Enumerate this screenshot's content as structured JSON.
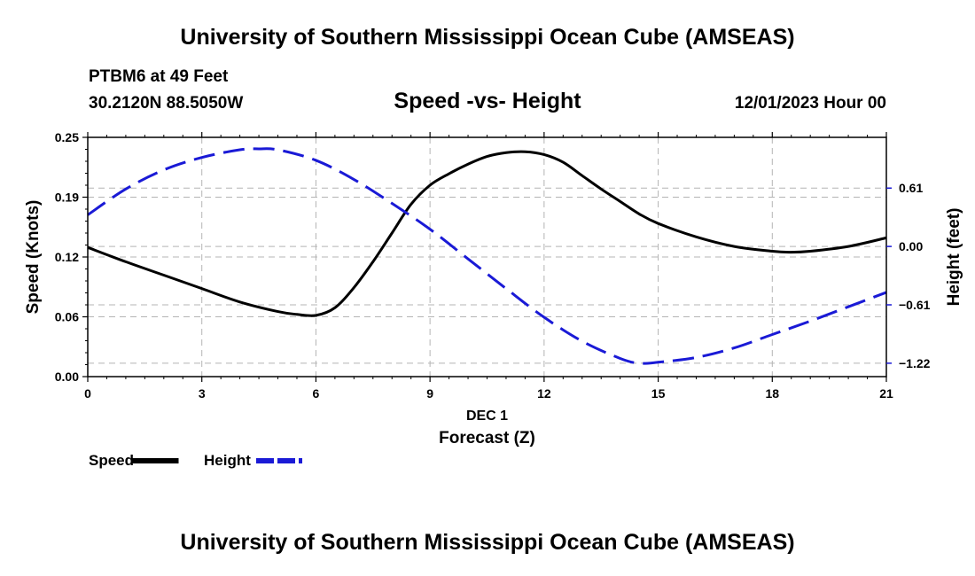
{
  "header": {
    "title": "University of Southern Mississippi Ocean Cube (AMSEAS)",
    "station": "PTBM6 at 49 Feet",
    "coords": "30.2120N  88.5050W",
    "date": "12/01/2023 Hour 00"
  },
  "footer": {
    "title": "University of Southern Mississippi Ocean Cube (AMSEAS)"
  },
  "chart_data": {
    "type": "line",
    "title": "Speed -vs- Height",
    "xlabel": "Forecast (Z)",
    "xsublabel": "DEC 1",
    "ylabel": "Speed (Knots)",
    "y2label": "Height (feet)",
    "xlim": [
      0,
      21
    ],
    "ylim": [
      0,
      0.25
    ],
    "y2lim": [
      -1.36,
      1.14
    ],
    "x_ticks": [
      0,
      3,
      6,
      9,
      12,
      15,
      18,
      21
    ],
    "x_tick_labels": [
      "0",
      "3",
      "6",
      "9",
      "12",
      "15",
      "18",
      "21"
    ],
    "y_ticks": [
      0,
      0.0625,
      0.125,
      0.1875,
      0.25
    ],
    "y_tick_labels": [
      "0.00",
      "0.06",
      "0.12",
      "0.19",
      "0.25"
    ],
    "y2_ticks": [
      -1.22,
      -0.61,
      0.0,
      0.61
    ],
    "y2_tick_labels": [
      "-1.22",
      "-0.61",
      "0.00",
      "0.61"
    ],
    "grid": true,
    "legend_position": "bottom-left",
    "series": [
      {
        "name": "Speed",
        "axis": "left",
        "color": "#000000",
        "dash": "solid",
        "x": [
          0,
          1,
          2,
          3,
          4,
          5,
          5.5,
          6,
          6.5,
          7,
          7.5,
          8,
          8.5,
          9,
          9.5,
          10,
          10.5,
          11,
          11.5,
          12,
          12.5,
          13,
          13.5,
          14,
          14.5,
          15,
          16,
          17,
          18,
          18.5,
          19,
          20,
          21
        ],
        "values": [
          0.135,
          0.12,
          0.106,
          0.092,
          0.078,
          0.068,
          0.065,
          0.064,
          0.072,
          0.093,
          0.12,
          0.15,
          0.18,
          0.2,
          0.212,
          0.222,
          0.23,
          0.234,
          0.235,
          0.232,
          0.224,
          0.21,
          0.196,
          0.183,
          0.17,
          0.16,
          0.146,
          0.136,
          0.131,
          0.13,
          0.131,
          0.136,
          0.145
        ]
      },
      {
        "name": "Height",
        "axis": "right",
        "color": "#1a1ad6",
        "dash": "dashed",
        "x": [
          0,
          1,
          2,
          3,
          4,
          4.5,
          5,
          6,
          7,
          8,
          9,
          10,
          11,
          12,
          13,
          14,
          14.5,
          15,
          16,
          17,
          18,
          19,
          20,
          21
        ],
        "values": [
          0.33,
          0.6,
          0.8,
          0.93,
          1.01,
          1.02,
          1.01,
          0.9,
          0.7,
          0.45,
          0.18,
          -0.13,
          -0.44,
          -0.74,
          -0.99,
          -1.17,
          -1.22,
          -1.21,
          -1.16,
          -1.06,
          -0.92,
          -0.78,
          -0.63,
          -0.48
        ]
      }
    ]
  }
}
